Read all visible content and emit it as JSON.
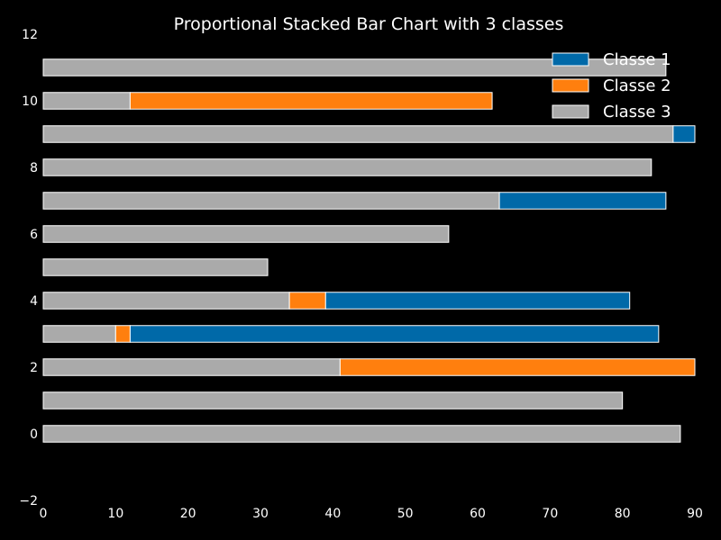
{
  "chart_data": {
    "type": "bar",
    "orientation": "horizontal",
    "stacked": true,
    "title": "Proportional Stacked Bar Chart with 3 classes",
    "xlabel": "",
    "ylabel": "",
    "xlim": [
      0,
      90
    ],
    "ylim": [
      -2,
      12
    ],
    "xticks": [
      0,
      10,
      20,
      30,
      40,
      50,
      60,
      70,
      80,
      90
    ],
    "yticks": [
      -2,
      0,
      2,
      4,
      6,
      8,
      10,
      12
    ],
    "grid": false,
    "legend_position": "top-right",
    "categories": [
      0,
      1,
      2,
      3,
      4,
      5,
      6,
      7,
      8,
      9,
      10,
      11
    ],
    "stack_order": [
      "Classe 3",
      "Classe 2",
      "Classe 1"
    ],
    "series": [
      {
        "name": "Classe 1",
        "color": "#0069a8",
        "values": [
          0,
          0,
          0,
          73,
          42,
          0,
          0,
          23,
          0,
          3,
          0,
          0
        ]
      },
      {
        "name": "Classe 2",
        "color": "#ff7f0e",
        "values": [
          0,
          0,
          49,
          2,
          5,
          0,
          0,
          0,
          0,
          0,
          50,
          0
        ]
      },
      {
        "name": "Classe 3",
        "color": "#aaaaaa",
        "values": [
          88,
          80,
          41,
          10,
          34,
          31,
          56,
          63,
          84,
          87,
          12,
          86
        ]
      }
    ]
  }
}
